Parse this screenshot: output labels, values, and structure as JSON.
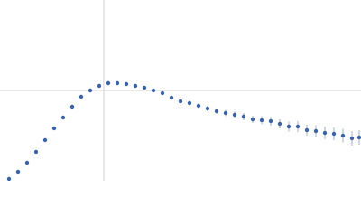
{
  "chart_data": {
    "type": "scatter",
    "color": "#3a63ad",
    "grid": true,
    "xlim": [
      0,
      4
    ],
    "ylim": [
      0,
      2
    ],
    "xticks": [
      1.15
    ],
    "yticks": [
      1.0
    ],
    "x": [
      0.1,
      0.2,
      0.3,
      0.4,
      0.5,
      0.6,
      0.7,
      0.8,
      0.9,
      1.0,
      1.1,
      1.2,
      1.3,
      1.4,
      1.5,
      1.6,
      1.7,
      1.8,
      1.9,
      2.0,
      2.1,
      2.2,
      2.3,
      2.4,
      2.5,
      2.6,
      2.7,
      2.8,
      2.9,
      3.0,
      3.1,
      3.2,
      3.3,
      3.4,
      3.5,
      3.6,
      3.7,
      3.8,
      3.9,
      3.98
    ],
    "values": [
      0.02,
      0.1,
      0.2,
      0.32,
      0.45,
      0.58,
      0.7,
      0.82,
      0.93,
      1.0,
      1.05,
      1.08,
      1.08,
      1.07,
      1.05,
      1.03,
      1.0,
      0.97,
      0.92,
      0.88,
      0.86,
      0.83,
      0.8,
      0.77,
      0.75,
      0.73,
      0.71,
      0.68,
      0.67,
      0.66,
      0.63,
      0.6,
      0.6,
      0.56,
      0.55,
      0.53,
      0.52,
      0.5,
      0.47,
      0.48
    ],
    "errors": [
      0.005,
      0.005,
      0.005,
      0.005,
      0.005,
      0.005,
      0.005,
      0.005,
      0.005,
      0.01,
      0.01,
      0.01,
      0.01,
      0.01,
      0.015,
      0.015,
      0.015,
      0.02,
      0.02,
      0.02,
      0.025,
      0.025,
      0.03,
      0.03,
      0.035,
      0.035,
      0.04,
      0.04,
      0.045,
      0.05,
      0.05,
      0.055,
      0.06,
      0.06,
      0.065,
      0.07,
      0.07,
      0.075,
      0.08,
      0.08
    ]
  }
}
